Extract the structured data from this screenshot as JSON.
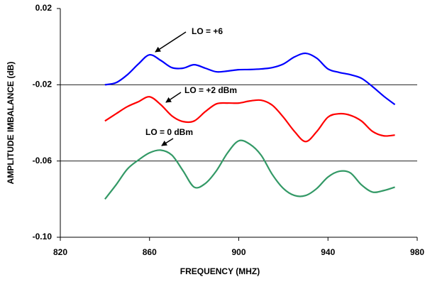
{
  "chart_data": {
    "type": "line",
    "xlabel": "FREQUENCY (MHZ)",
    "ylabel": "AMPLITUDE IMBALANCE (dB)",
    "x": [
      840,
      845,
      850,
      855,
      860,
      865,
      870,
      875,
      880,
      885,
      890,
      895,
      900,
      905,
      910,
      915,
      920,
      925,
      930,
      935,
      940,
      945,
      950,
      955,
      960,
      965,
      970
    ],
    "series": [
      {
        "color": "#0000ff",
        "values": [
          -0.02,
          -0.0189,
          -0.0148,
          -0.0091,
          -0.0043,
          -0.0072,
          -0.011,
          -0.0113,
          -0.0095,
          -0.0113,
          -0.0132,
          -0.0128,
          -0.0121,
          -0.012,
          -0.0117,
          -0.011,
          -0.0091,
          -0.0054,
          -0.0035,
          -0.0061,
          -0.0117,
          -0.0135,
          -0.0147,
          -0.0166,
          -0.021,
          -0.026,
          -0.0304
        ]
      },
      {
        "color": "#ff0000",
        "values": [
          -0.039,
          -0.0352,
          -0.0315,
          -0.0289,
          -0.0263,
          -0.0304,
          -0.0363,
          -0.0393,
          -0.039,
          -0.0341,
          -0.03,
          -0.0296,
          -0.0296,
          -0.0285,
          -0.0281,
          -0.0307,
          -0.037,
          -0.0445,
          -0.0498,
          -0.0445,
          -0.037,
          -0.0352,
          -0.036,
          -0.039,
          -0.0445,
          -0.0468,
          -0.0464
        ]
      },
      {
        "color": "#339966",
        "values": [
          -0.08,
          -0.0725,
          -0.0643,
          -0.0595,
          -0.0557,
          -0.0543,
          -0.0569,
          -0.0651,
          -0.0737,
          -0.0718,
          -0.0651,
          -0.0557,
          -0.0494,
          -0.0512,
          -0.0569,
          -0.067,
          -0.0744,
          -0.0781,
          -0.0781,
          -0.0744,
          -0.0684,
          -0.0654,
          -0.0662,
          -0.0725,
          -0.0763,
          -0.0755,
          -0.0737
        ]
      }
    ],
    "annotations": [
      "LO = +6",
      "LO = +2 dBm",
      "LO = 0 dBm"
    ],
    "xlim": [
      820,
      980
    ],
    "xticks": [
      820,
      860,
      900,
      940,
      980
    ],
    "ylim": [
      -0.1,
      0.02
    ],
    "yticks": [
      {
        "value": -0.1,
        "label": "-0.10"
      },
      -0.06,
      -0.02,
      0.02
    ],
    "grid": true
  }
}
